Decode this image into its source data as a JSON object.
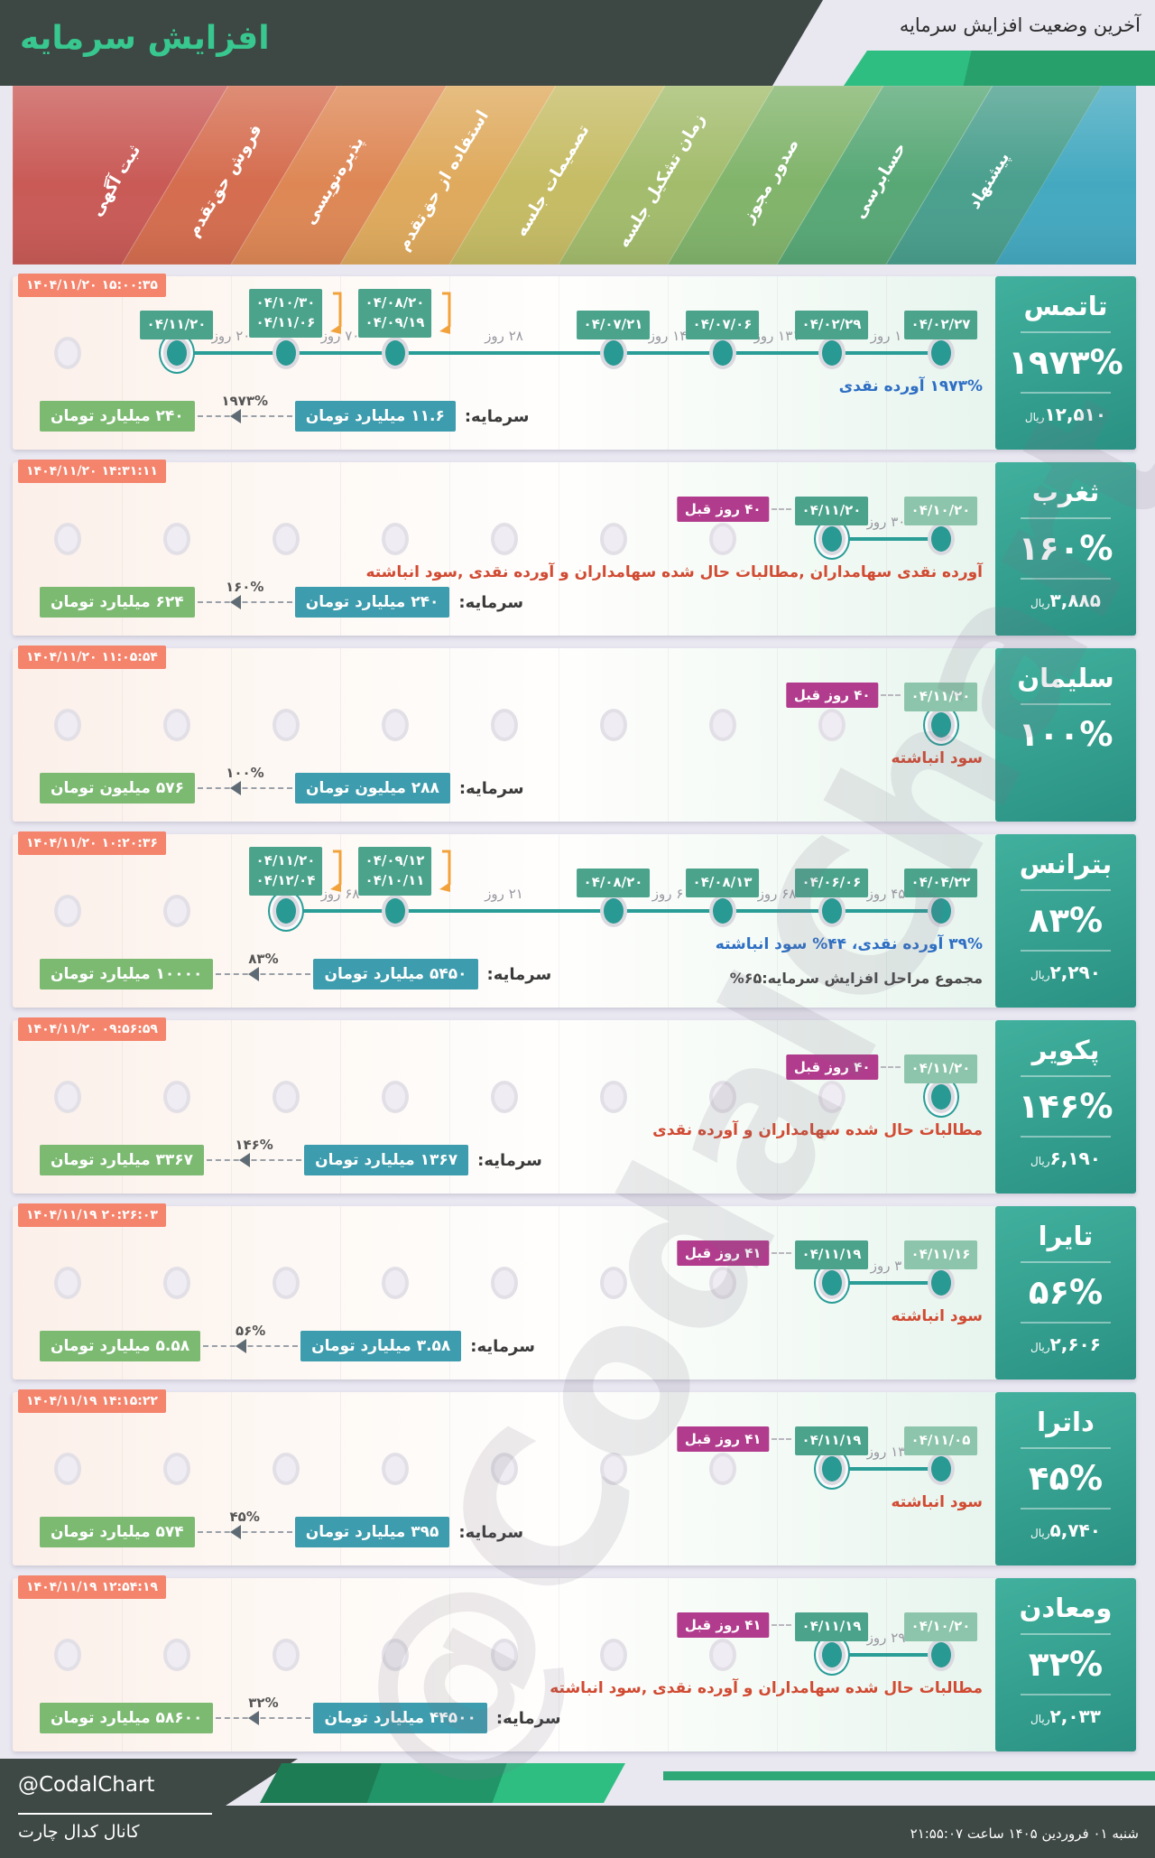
{
  "header": {
    "title": "افزایش سرمایه",
    "subtitle": "آخرین وضعیت افزایش سرمایه"
  },
  "labels": {
    "capital": "سرمایه:",
    "rial": "ریال"
  },
  "colors": {
    "accent_green": "#38c78e",
    "header_dark": "#3d4744",
    "timestamp_badge": "#f4846c",
    "date_badge": "#4ba38c",
    "date_badge_faded": "#8cc5ab",
    "ago_badge": "#b13b8c",
    "old_capital_badge": "#3d9cad",
    "new_capital_badge": "#7cba72",
    "timeline": "#2a9d97",
    "desc_blue": "#2e6fc4",
    "desc_red": "#d14a32"
  },
  "stages": [
    {
      "label": "ثبت آگهی",
      "color": "#c95a56"
    },
    {
      "label": "فروش حق‌تقدم",
      "color": "#d56d4f"
    },
    {
      "label": "پذیره‌نویسی",
      "color": "#de8755"
    },
    {
      "label": "استفاده از حق‌تقدم",
      "color": "#dfaa5d"
    },
    {
      "label": "تصمیمات جلسه",
      "color": "#c6bc65"
    },
    {
      "label": "زمان تشکیل جلسه",
      "color": "#a3bc6c"
    },
    {
      "label": "صدور مجوز",
      "color": "#81b46b"
    },
    {
      "label": "حسابرسی",
      "color": "#58a876"
    },
    {
      "label": "پیشنهاد",
      "color": "#4a9f8d"
    }
  ],
  "banner_cap_color": "#44a9c0",
  "cards": [
    {
      "name": "تاتمس",
      "percent": "۱۹۷۳%",
      "rial": "۱۲,۵۱۰",
      "timestamp": "۱۴۰۴/۱۱/۲۰ ۱۵:۰۰:۳۵",
      "desc": "۱۹۷۳% آورده نقدی",
      "desc_color": "#2e6fc4",
      "extra": null,
      "capital": {
        "old": "۱۱.۶ میلیارد تومان",
        "new": "۲۴۰ میلیارد تومان",
        "pct": "۱۹۷۳%"
      },
      "events": [
        {
          "col": 2,
          "dates": [
            "۰۴/۱۱/۲۰"
          ],
          "ringed": true
        },
        {
          "col": 3,
          "dates": [
            "۰۴/۱۰/۳۰",
            "۰۴/۱۱/۰۶"
          ],
          "bracket": true
        },
        {
          "col": 4,
          "dates": [
            "۰۴/۰۸/۲۰",
            "۰۴/۰۹/۱۹"
          ],
          "bracket": true
        },
        {
          "col": 6,
          "dates": [
            "۰۴/۰۷/۲۱"
          ]
        },
        {
          "col": 7,
          "dates": [
            "۰۴/۰۷/۰۶"
          ]
        },
        {
          "col": 8,
          "dates": [
            "۰۴/۰۲/۲۹"
          ]
        },
        {
          "col": 9,
          "dates": [
            "۰۴/۰۲/۲۷"
          ]
        }
      ],
      "gaps": [
        {
          "a": 2,
          "b": 3,
          "label": "۲۰ روز"
        },
        {
          "a": 3,
          "b": 4,
          "label": "۷۰ روز"
        },
        {
          "a": 4,
          "b": 6,
          "label": "۲۸ روز"
        },
        {
          "a": 6,
          "b": 7,
          "label": "۱۴ روز"
        },
        {
          "a": 7,
          "b": 8,
          "label": "۱۳۱ روز"
        },
        {
          "a": 8,
          "b": 9,
          "label": "۱ روز"
        }
      ]
    },
    {
      "name": "ثغرب",
      "percent": "۱۶۰%",
      "rial": "۳,۸۸۵",
      "timestamp": "۱۴۰۴/۱۱/۲۰ ۱۴:۳۱:۱۱",
      "desc": "آورده نقدی سهامداران ,مطالبات حال شده سهامداران و آورده نقدی ,سود انباشته",
      "desc_color": "#d14a32",
      "extra": null,
      "capital": {
        "old": "۲۴۰ میلیارد تومان",
        "new": "۶۲۴ میلیارد تومان",
        "pct": "۱۶۰%"
      },
      "events": [
        {
          "col": 8,
          "dates": [
            "۰۴/۱۱/۲۰"
          ],
          "ringed": true,
          "ago": "۴۰ روز قبل"
        },
        {
          "col": 9,
          "dates": [
            "۰۴/۱۰/۲۰"
          ],
          "faded": true
        }
      ],
      "gaps": [
        {
          "a": 8,
          "b": 9,
          "label": "۳۰ روز"
        }
      ]
    },
    {
      "name": "سلیمان",
      "percent": "۱۰۰%",
      "rial": null,
      "timestamp": "۱۴۰۴/۱۱/۲۰ ۱۱:۰۵:۵۴",
      "desc": "سود انباشته",
      "desc_color": "#d14a32",
      "extra": null,
      "capital": {
        "old": "۲۸۸ میلیون تومان",
        "new": "۵۷۶ میلیون تومان",
        "pct": "۱۰۰%"
      },
      "events": [
        {
          "col": 9,
          "dates": [
            "۰۴/۱۱/۲۰"
          ],
          "ringed": true,
          "faded": true,
          "ago": "۴۰ روز قبل"
        }
      ],
      "gaps": []
    },
    {
      "name": "بترانس",
      "percent": "۸۳%",
      "rial": "۲,۲۹۰",
      "timestamp": "۱۴۰۴/۱۱/۲۰ ۱۰:۲۰:۳۶",
      "desc": "۳۹% آورده نقدی، ۴۴% سود انباشته",
      "desc_color": "#2e6fc4",
      "extra": "مجموع مراحل افزایش سرمایه:۶۵%",
      "capital": {
        "old": "۵۴۵۰ میلیارد تومان",
        "new": "۱۰۰۰۰ میلیارد تومان",
        "pct": "۸۳%"
      },
      "events": [
        {
          "col": 3,
          "dates": [
            "۰۴/۱۱/۲۰",
            "۰۴/۱۲/۰۴"
          ],
          "ringed": true,
          "bracket": true
        },
        {
          "col": 4,
          "dates": [
            "۰۴/۰۹/۱۲",
            "۰۴/۱۰/۱۱"
          ],
          "bracket": true
        },
        {
          "col": 6,
          "dates": [
            "۰۴/۰۸/۲۰"
          ]
        },
        {
          "col": 7,
          "dates": [
            "۰۴/۰۸/۱۳"
          ]
        },
        {
          "col": 8,
          "dates": [
            "۰۴/۰۶/۰۶"
          ]
        },
        {
          "col": 9,
          "dates": [
            "۰۴/۰۴/۲۲"
          ]
        }
      ],
      "gaps": [
        {
          "a": 3,
          "b": 4,
          "label": "۶۸ روز"
        },
        {
          "a": 4,
          "b": 6,
          "label": "۲۱ روز"
        },
        {
          "a": 6,
          "b": 7,
          "label": "۶ روز"
        },
        {
          "a": 7,
          "b": 8,
          "label": "۶۸ روز"
        },
        {
          "a": 8,
          "b": 9,
          "label": "۴۵ روز"
        }
      ]
    },
    {
      "name": "پکویر",
      "percent": "۱۴۶%",
      "rial": "۶,۱۹۰",
      "timestamp": "۱۴۰۴/۱۱/۲۰ ۰۹:۵۶:۵۹",
      "desc": "مطالبات حال شده سهامداران و آورده نقدی",
      "desc_color": "#d14a32",
      "extra": null,
      "capital": {
        "old": "۱۳۶۷ میلیارد تومان",
        "new": "۳۳۶۷ میلیارد تومان",
        "pct": "۱۴۶%"
      },
      "events": [
        {
          "col": 9,
          "dates": [
            "۰۴/۱۱/۲۰"
          ],
          "ringed": true,
          "faded": true,
          "ago": "۴۰ روز قبل"
        }
      ],
      "gaps": []
    },
    {
      "name": "تایرا",
      "percent": "۵۶%",
      "rial": "۲,۶۰۶",
      "timestamp": "۱۴۰۴/۱۱/۱۹ ۲۰:۲۶:۰۳",
      "desc": "سود انباشته",
      "desc_color": "#d14a32",
      "extra": null,
      "capital": {
        "old": "۳.۵۸ میلیارد تومان",
        "new": "۵.۵۸ میلیارد تومان",
        "pct": "۵۶%"
      },
      "events": [
        {
          "col": 8,
          "dates": [
            "۰۴/۱۱/۱۹"
          ],
          "ringed": true,
          "ago": "۴۱ روز قبل"
        },
        {
          "col": 9,
          "dates": [
            "۰۴/۱۱/۱۶"
          ],
          "faded": true
        }
      ],
      "gaps": [
        {
          "a": 8,
          "b": 9,
          "label": "۳ روز"
        }
      ]
    },
    {
      "name": "داترا",
      "percent": "۴۵%",
      "rial": "۵,۷۴۰",
      "timestamp": "۱۴۰۴/۱۱/۱۹ ۱۴:۱۵:۲۲",
      "desc": "سود انباشته",
      "desc_color": "#d14a32",
      "extra": null,
      "capital": {
        "old": "۳۹۵ میلیارد تومان",
        "new": "۵۷۴ میلیارد تومان",
        "pct": "۴۵%"
      },
      "events": [
        {
          "col": 8,
          "dates": [
            "۰۴/۱۱/۱۹"
          ],
          "ringed": true,
          "ago": "۴۱ روز قبل"
        },
        {
          "col": 9,
          "dates": [
            "۰۴/۱۱/۰۵"
          ],
          "faded": true
        }
      ],
      "gaps": [
        {
          "a": 8,
          "b": 9,
          "label": "۱۳ روز"
        }
      ]
    },
    {
      "name": "ومعادن",
      "percent": "۳۲%",
      "rial": "۲,۰۳۳",
      "timestamp": "۱۴۰۴/۱۱/۱۹ ۱۲:۵۴:۱۹",
      "desc": "مطالبات حال شده سهامداران و آورده نقدی ,سود انباشته",
      "desc_color": "#d14a32",
      "extra": null,
      "capital": {
        "old": "۴۴۵۰۰ میلیارد تومان",
        "new": "۵۸۶۰۰ میلیارد تومان",
        "pct": "۳۲%"
      },
      "events": [
        {
          "col": 8,
          "dates": [
            "۰۴/۱۱/۱۹"
          ],
          "ringed": true,
          "ago": "۴۱ روز قبل"
        },
        {
          "col": 9,
          "dates": [
            "۰۴/۱۰/۲۰"
          ],
          "faded": true
        }
      ],
      "gaps": [
        {
          "a": 8,
          "b": 9,
          "label": "۲۹ روز"
        }
      ]
    }
  ],
  "watermark": "@CodalChart",
  "footer": {
    "handle": "@CodalChart",
    "channel": "کانال کدال چارت",
    "datetime": "شنبه ۰۱ فروردین ۱۴۰۵ ساعت ۲۱:۵۵:۰۷"
  },
  "chart_data": {
    "type": "table",
    "title": "آخرین وضعیت افزایش سرمایه",
    "stage_columns_rtl": [
      "پیشنهاد",
      "حسابرسی",
      "صدور مجوز",
      "زمان تشکیل جلسه",
      "تصمیمات جلسه",
      "استفاده از حق‌تقدم",
      "پذیره‌نویسی",
      "فروش حق‌تقدم",
      "ثبت آگهی"
    ],
    "rows": [
      {
        "company": "تاتمس",
        "increase_percent": 1973,
        "price_rial": 12510,
        "capital_before": "۱۱.۶ میلیارد تومان",
        "capital_after": "۲۴۰ میلیارد تومان",
        "method": "آورده نقدی"
      },
      {
        "company": "ثغرب",
        "increase_percent": 160,
        "price_rial": 3885,
        "capital_before": "۲۴۰ میلیارد تومان",
        "capital_after": "۶۲۴ میلیارد تومان",
        "method": "آورده نقدی سهامداران، مطالبات حال شده سهامداران و آورده نقدی، سود انباشته"
      },
      {
        "company": "سلیمان",
        "increase_percent": 100,
        "price_rial": null,
        "capital_before": "۲۸۸ میلیون تومان",
        "capital_after": "۵۷۶ میلیون تومان",
        "method": "سود انباشته"
      },
      {
        "company": "بترانس",
        "increase_percent": 83,
        "price_rial": 2290,
        "capital_before": "۵۴۵۰ میلیارد تومان",
        "capital_after": "۱۰۰۰۰ میلیارد تومان",
        "method": "۳۹% آورده نقدی، ۴۴% سود انباشته"
      },
      {
        "company": "پکویر",
        "increase_percent": 146,
        "price_rial": 6190,
        "capital_before": "۱۳۶۷ میلیارد تومان",
        "capital_after": "۳۳۶۷ میلیارد تومان",
        "method": "مطالبات حال شده سهامداران و آورده نقدی"
      },
      {
        "company": "تایرا",
        "increase_percent": 56,
        "price_rial": 2606,
        "capital_before": "۳.۵۸ میلیارد تومان",
        "capital_after": "۵.۵۸ میلیارد تومان",
        "method": "سود انباشته"
      },
      {
        "company": "داترا",
        "increase_percent": 45,
        "price_rial": 5740,
        "capital_before": "۳۹۵ میلیارد تومان",
        "capital_after": "۵۷۴ میلیارد تومان",
        "method": "سود انباشته"
      },
      {
        "company": "ومعادن",
        "increase_percent": 32,
        "price_rial": 2033,
        "capital_before": "۴۴۵۰۰ میلیارد تومان",
        "capital_after": "۵۸۶۰۰ میلیارد تومان",
        "method": "مطالبات حال شده سهامداران و آورده نقدی، سود انباشته"
      }
    ]
  }
}
